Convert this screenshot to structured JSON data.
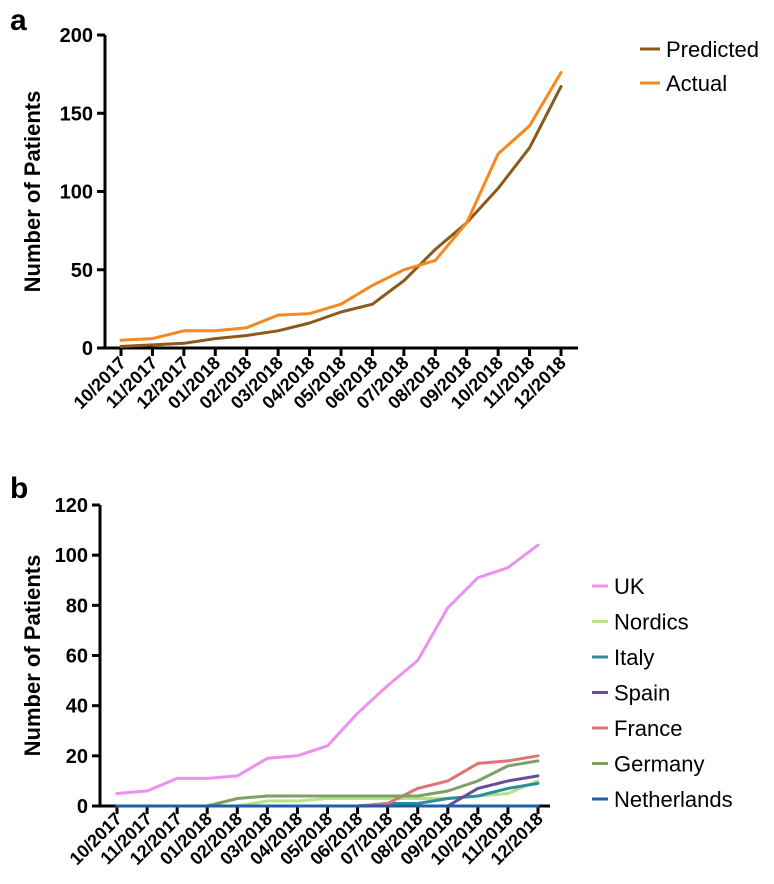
{
  "chart_data": [
    {
      "panel": "a",
      "type": "line",
      "categories": [
        "10/2017",
        "11/2017",
        "12/2017",
        "01/2018",
        "02/2018",
        "03/2018",
        "04/2018",
        "05/2018",
        "06/2018",
        "07/2018",
        "08/2018",
        "09/2018",
        "10/2018",
        "11/2018",
        "12/2018"
      ],
      "ylabel": "Number of Patients",
      "xlabel": "",
      "ylim": [
        0,
        200
      ],
      "yticks": [
        0,
        50,
        100,
        150,
        200
      ],
      "legend_position": "top-right",
      "series": [
        {
          "name": "Predicted",
          "color": "#8B5A1B",
          "values": [
            1,
            2,
            3,
            6,
            8,
            11,
            16,
            23,
            28,
            43,
            63,
            80,
            102,
            128,
            167
          ]
        },
        {
          "name": "Actual",
          "color": "#F5891F",
          "values": [
            5,
            6,
            11,
            11,
            13,
            21,
            22,
            28,
            40,
            50,
            56,
            80,
            124,
            142,
            176
          ]
        }
      ]
    },
    {
      "panel": "b",
      "type": "line",
      "categories": [
        "10/2017",
        "11/2017",
        "12/2017",
        "01/2018",
        "02/2018",
        "03/2018",
        "04/2018",
        "05/2018",
        "06/2018",
        "07/2018",
        "08/2018",
        "09/2018",
        "10/2018",
        "11/2018",
        "12/2018"
      ],
      "ylabel": "Number of Patients",
      "xlabel": "",
      "ylim": [
        0,
        120
      ],
      "yticks": [
        0,
        20,
        40,
        60,
        80,
        100,
        120
      ],
      "legend_position": "right",
      "series": [
        {
          "name": "UK",
          "color": "#EE90EE",
          "values": [
            5,
            6,
            11,
            11,
            12,
            19,
            20,
            24,
            37,
            48,
            58,
            79,
            91,
            95,
            104
          ]
        },
        {
          "name": "Nordics",
          "color": "#B5E38A",
          "values": [
            0,
            0,
            0,
            0,
            0,
            2,
            2,
            3,
            3,
            3,
            3,
            3,
            4,
            5,
            10
          ]
        },
        {
          "name": "Italy",
          "color": "#2A8F9A",
          "values": [
            0,
            0,
            0,
            0,
            0,
            0,
            0,
            0,
            0,
            1,
            1,
            3,
            4,
            7,
            9
          ]
        },
        {
          "name": "Spain",
          "color": "#6A4A9A",
          "values": [
            0,
            0,
            0,
            0,
            0,
            0,
            0,
            0,
            0,
            0,
            0,
            0,
            7,
            10,
            12
          ]
        },
        {
          "name": "France",
          "color": "#E07375",
          "values": [
            0,
            0,
            0,
            0,
            0,
            0,
            0,
            0,
            0,
            1,
            7,
            10,
            17,
            18,
            20
          ]
        },
        {
          "name": "Germany",
          "color": "#7EA066",
          "values": [
            0,
            0,
            0,
            0,
            3,
            4,
            4,
            4,
            4,
            4,
            4,
            6,
            10,
            16,
            18
          ]
        },
        {
          "name": "Netherlands",
          "color": "#1D5FAA",
          "values": [
            0,
            0,
            0,
            0,
            0,
            0,
            0,
            0,
            0,
            0,
            0,
            0,
            0,
            0,
            0
          ]
        }
      ]
    }
  ],
  "panel_a_letter": "a",
  "panel_b_letter": "b"
}
